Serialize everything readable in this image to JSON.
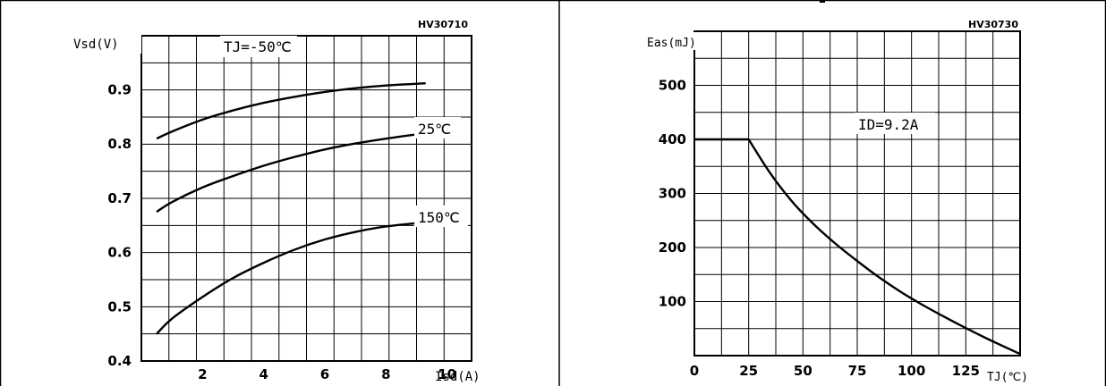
{
  "charts": [
    {
      "figure_code": "HV30710",
      "ylabel": "Vsd(V)",
      "xlabel": "Isd(A)",
      "curve_labels": [
        "TJ=-50℃",
        "25℃",
        "150℃"
      ]
    },
    {
      "figure_code": "HV30730",
      "ylabel": "Eas(mJ)",
      "xlabel": "TJ(℃)",
      "curve_labels": [
        "ID=9.2A"
      ]
    }
  ],
  "chart_data": [
    {
      "type": "line",
      "title": "",
      "xlabel": "Isd(A)",
      "ylabel": "Vsd(V)",
      "xlim": [
        0,
        10
      ],
      "ylim": [
        0.4,
        0.95
      ],
      "x_ticks": [
        "2",
        "4",
        "6",
        "8",
        "10"
      ],
      "y_ticks": [
        "0.4",
        "0.5",
        "0.6",
        "0.7",
        "0.8",
        "0.9"
      ],
      "grid": true,
      "series": [
        {
          "name": "TJ=-50℃",
          "x": [
            0.5,
            1,
            2,
            3,
            4,
            5,
            6,
            7,
            8,
            9.3
          ],
          "y": [
            0.81,
            0.823,
            0.845,
            0.862,
            0.876,
            0.887,
            0.896,
            0.903,
            0.908,
            0.912
          ]
        },
        {
          "name": "25℃",
          "x": [
            0.5,
            1,
            2,
            3,
            4,
            5,
            6,
            7,
            8,
            9.3
          ],
          "y": [
            0.675,
            0.693,
            0.72,
            0.741,
            0.76,
            0.776,
            0.79,
            0.801,
            0.81,
            0.82
          ]
        },
        {
          "name": "150℃",
          "x": [
            0.5,
            1,
            2,
            3,
            4,
            5,
            6,
            7,
            8,
            9.3
          ],
          "y": [
            0.45,
            0.478,
            0.518,
            0.553,
            0.581,
            0.605,
            0.624,
            0.638,
            0.648,
            0.656
          ]
        }
      ]
    },
    {
      "type": "line",
      "title": "",
      "xlabel": "TJ(℃)",
      "ylabel": "Eas(mJ)",
      "xlim": [
        0,
        150
      ],
      "ylim": [
        0,
        600
      ],
      "x_ticks": [
        "0",
        "25",
        "50",
        "75",
        "100",
        "125"
      ],
      "y_ticks": [
        "100",
        "200",
        "300",
        "400",
        "500"
      ],
      "grid": true,
      "series": [
        {
          "name": "ID=9.2A",
          "x": [
            0,
            25,
            35,
            45,
            55,
            65,
            75,
            85,
            95,
            105,
            115,
            125,
            135,
            150
          ],
          "y": [
            400,
            400,
            337,
            285,
            243,
            207,
            175,
            145,
            118,
            94,
            72,
            51,
            31,
            3
          ]
        }
      ]
    }
  ]
}
